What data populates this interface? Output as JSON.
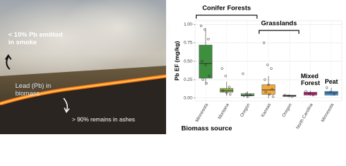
{
  "photo": {
    "annotations": [
      "< 10% Pb emitted in smoke",
      "Lead (Pb) in biomass",
      "> 90% remains in ashes"
    ]
  },
  "chart_data": {
    "type": "box",
    "y_label": "Pb EF (mg/kg)",
    "x_label": "Biomass source",
    "categories": [
      "Minnesota",
      "Montana",
      "Oregon",
      "Kansas",
      "Oregon",
      "North Carolina",
      "Minnesota"
    ],
    "groups": [
      {
        "label": "Conifer Forests",
        "bracket": true,
        "members": [
          0,
          1,
          2
        ]
      },
      {
        "label": "Grasslands",
        "bracket": true,
        "members": [
          3,
          4
        ]
      },
      {
        "label": "Mixed Forest",
        "bracket": false,
        "members": [
          5
        ]
      },
      {
        "label": "Peat",
        "bracket": false,
        "members": [
          6
        ]
      }
    ],
    "boxes": [
      {
        "color": "#3d8f3d",
        "min": 0.18,
        "q1": 0.27,
        "median": 0.47,
        "q3": 0.72,
        "max": 0.95,
        "points": [
          0.98,
          0.93,
          0.8,
          0.5,
          0.45,
          0.3,
          0.25,
          0.2
        ]
      },
      {
        "color": "#8cb43c",
        "min": 0.03,
        "q1": 0.08,
        "median": 0.1,
        "q3": 0.13,
        "max": 0.22,
        "points": [
          0.4,
          0.3,
          0.15,
          0.1,
          0.07,
          0.05
        ]
      },
      {
        "color": "#7fca7f",
        "min": 0.01,
        "q1": 0.03,
        "median": 0.04,
        "q3": 0.06,
        "max": 0.09,
        "points": [
          0.33,
          0.06,
          0.04,
          0.03,
          0.02
        ]
      },
      {
        "color": "#f2a93b",
        "min": 0.0,
        "q1": 0.05,
        "median": 0.11,
        "q3": 0.18,
        "max": 0.3,
        "points": [
          0.75,
          0.45,
          0.4,
          0.25,
          0.18,
          0.12,
          0.08,
          0.05,
          0.02
        ]
      },
      {
        "color": "#f5c28c",
        "min": 0.01,
        "q1": 0.02,
        "median": 0.03,
        "q3": 0.04,
        "max": 0.05,
        "points": [
          0.04,
          0.03,
          0.02
        ]
      },
      {
        "color": "#e0218a",
        "min": 0.03,
        "q1": 0.04,
        "median": 0.06,
        "q3": 0.08,
        "max": 0.1,
        "points": [
          0.09,
          0.06,
          0.04
        ]
      },
      {
        "color": "#3a8fd9",
        "min": 0.03,
        "q1": 0.04,
        "median": 0.07,
        "q3": 0.09,
        "max": 0.14,
        "points": [
          0.14,
          0.08,
          0.05
        ]
      }
    ],
    "ylim": [
      -0.04,
      1.05
    ],
    "yticks": [
      {
        "value": 0,
        "label": "0.00"
      },
      {
        "value": 0.25,
        "label": "0.25"
      },
      {
        "value": 0.5,
        "label": "0.50"
      },
      {
        "value": 0.75,
        "label": "0.75"
      },
      {
        "value": 1,
        "label": "1.00"
      }
    ],
    "grid": true
  }
}
